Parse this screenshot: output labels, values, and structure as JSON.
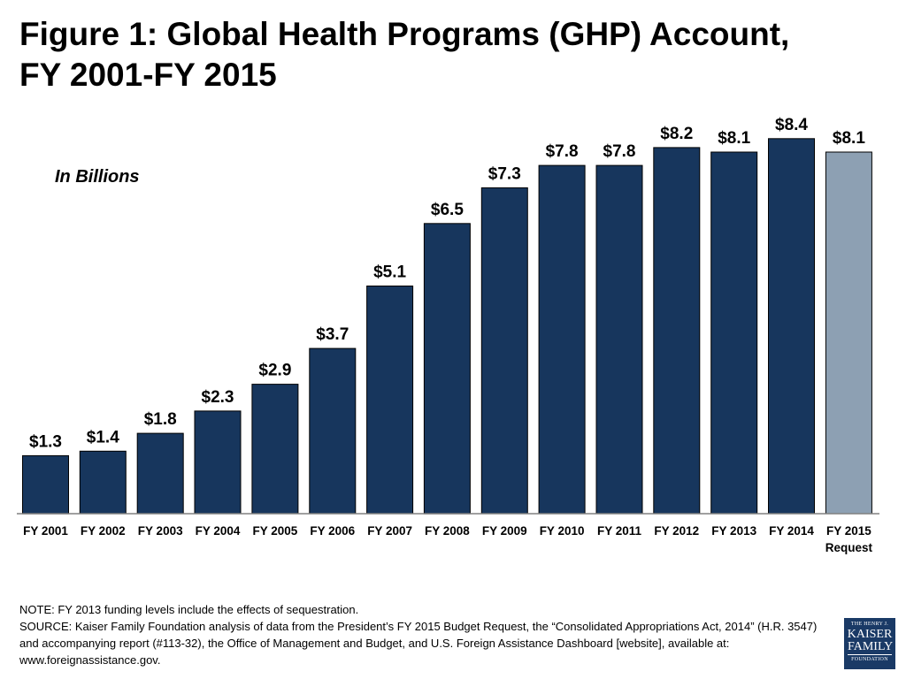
{
  "title": {
    "line1": "Figure 1: Global Health Programs (GHP) Account,",
    "line2": "FY 2001-FY 2015"
  },
  "chart_data": {
    "type": "bar",
    "title": "Figure 1: Global Health Programs (GHP) Account, FY 2001-FY 2015",
    "units_label": "In Billions",
    "categories": [
      [
        "FY 2001"
      ],
      [
        "FY 2002"
      ],
      [
        "FY 2003"
      ],
      [
        "FY 2004"
      ],
      [
        "FY 2005"
      ],
      [
        "FY 2006"
      ],
      [
        "FY 2007"
      ],
      [
        "FY 2008"
      ],
      [
        "FY 2009"
      ],
      [
        "FY 2010"
      ],
      [
        "FY 2011"
      ],
      [
        "FY 2012"
      ],
      [
        "FY 2013"
      ],
      [
        "FY 2014"
      ],
      [
        "FY 2015",
        "Request"
      ]
    ],
    "values": [
      1.3,
      1.4,
      1.8,
      2.3,
      2.9,
      3.7,
      5.1,
      6.5,
      7.3,
      7.8,
      7.8,
      8.2,
      8.1,
      8.4,
      8.1
    ],
    "data_labels": [
      "$1.3",
      "$1.4",
      "$1.8",
      "$2.3",
      "$2.9",
      "$3.7",
      "$5.1",
      "$6.5",
      "$7.3",
      "$7.8",
      "$7.8",
      "$8.2",
      "$8.1",
      "$8.4",
      "$8.1"
    ],
    "colors": {
      "enacted": "#17365d",
      "request": "#8da0b3",
      "baseline": "#808080"
    },
    "request_index": 14,
    "ylim": [
      0,
      9
    ],
    "grid": false,
    "legend": "none"
  },
  "footnotes": {
    "note": "NOTE: FY 2013 funding levels include the effects of sequestration.",
    "source": "SOURCE: Kaiser Family Foundation analysis of data from the President’s FY 2015 Budget Request, the “Consolidated Appropriations Act, 2014” (H.R. 3547) and accompanying report (#113-32), the Office of Management and Budget, and U.S. Foreign Assistance Dashboard [website], available at: www.foreignassistance.gov."
  },
  "logo": {
    "line1": "THE HENRY J.",
    "line2": "KAISER",
    "line3": "FAMILY",
    "line4": "FOUNDATION"
  }
}
